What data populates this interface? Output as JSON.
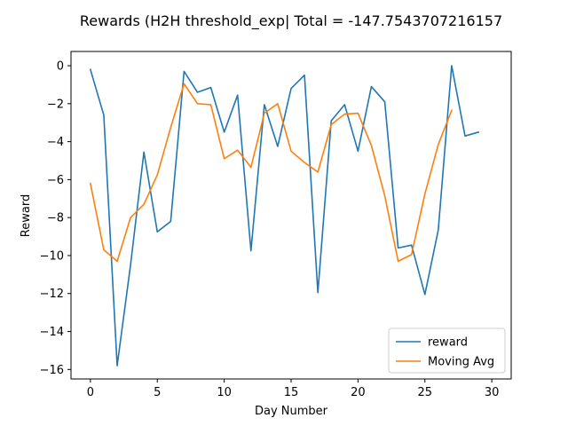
{
  "chart_data": {
    "type": "line",
    "title": "Rewards (H2H threshold_exp| Total = -147.7543707216157",
    "xlabel": "Day Number",
    "ylabel": "Reward",
    "xlim": [
      -1.45,
      31.45
    ],
    "ylim": [
      -16.5,
      0.75
    ],
    "xticks": [
      0,
      5,
      10,
      15,
      20,
      25,
      30
    ],
    "yticks": [
      0,
      -2,
      -4,
      -6,
      -8,
      -10,
      -12,
      -14,
      -16
    ],
    "grid": false,
    "legend_position": "lower-right",
    "series": [
      {
        "name": "reward",
        "color": "#1f77b4",
        "x": [
          0,
          1,
          2,
          3,
          4,
          5,
          6,
          7,
          8,
          9,
          10,
          11,
          12,
          13,
          14,
          15,
          16,
          17,
          18,
          19,
          20,
          21,
          22,
          23,
          24,
          25,
          26,
          27,
          28,
          29
        ],
        "values": [
          -0.2,
          -2.6,
          -15.8,
          -10.5,
          -4.55,
          -8.75,
          -8.2,
          -0.3,
          -1.4,
          -1.15,
          -3.5,
          -1.55,
          -9.75,
          -2.05,
          -4.25,
          -1.2,
          -0.5,
          -11.95,
          -2.9,
          -2.05,
          -4.5,
          -1.1,
          -1.9,
          -9.6,
          -9.45,
          -12.05,
          -8.65,
          0.0,
          -3.7,
          -3.5
        ]
      },
      {
        "name": "Moving Avg",
        "color": "#ff7f0e",
        "x": [
          0,
          1,
          2,
          3,
          4,
          5,
          6,
          7,
          8,
          9,
          10,
          11,
          12,
          13,
          14,
          15,
          16,
          17,
          18,
          19,
          20,
          21,
          22,
          23,
          24,
          25,
          26,
          27
        ],
        "values": [
          -6.2,
          -9.7,
          -10.3,
          -8.0,
          -7.3,
          -5.75,
          -3.25,
          -0.95,
          -2.0,
          -2.05,
          -4.9,
          -4.45,
          -5.35,
          -2.5,
          -2.0,
          -4.5,
          -5.1,
          -5.6,
          -3.1,
          -2.55,
          -2.5,
          -4.2,
          -6.85,
          -10.3,
          -9.95,
          -6.75,
          -4.15,
          -2.35
        ]
      }
    ]
  }
}
